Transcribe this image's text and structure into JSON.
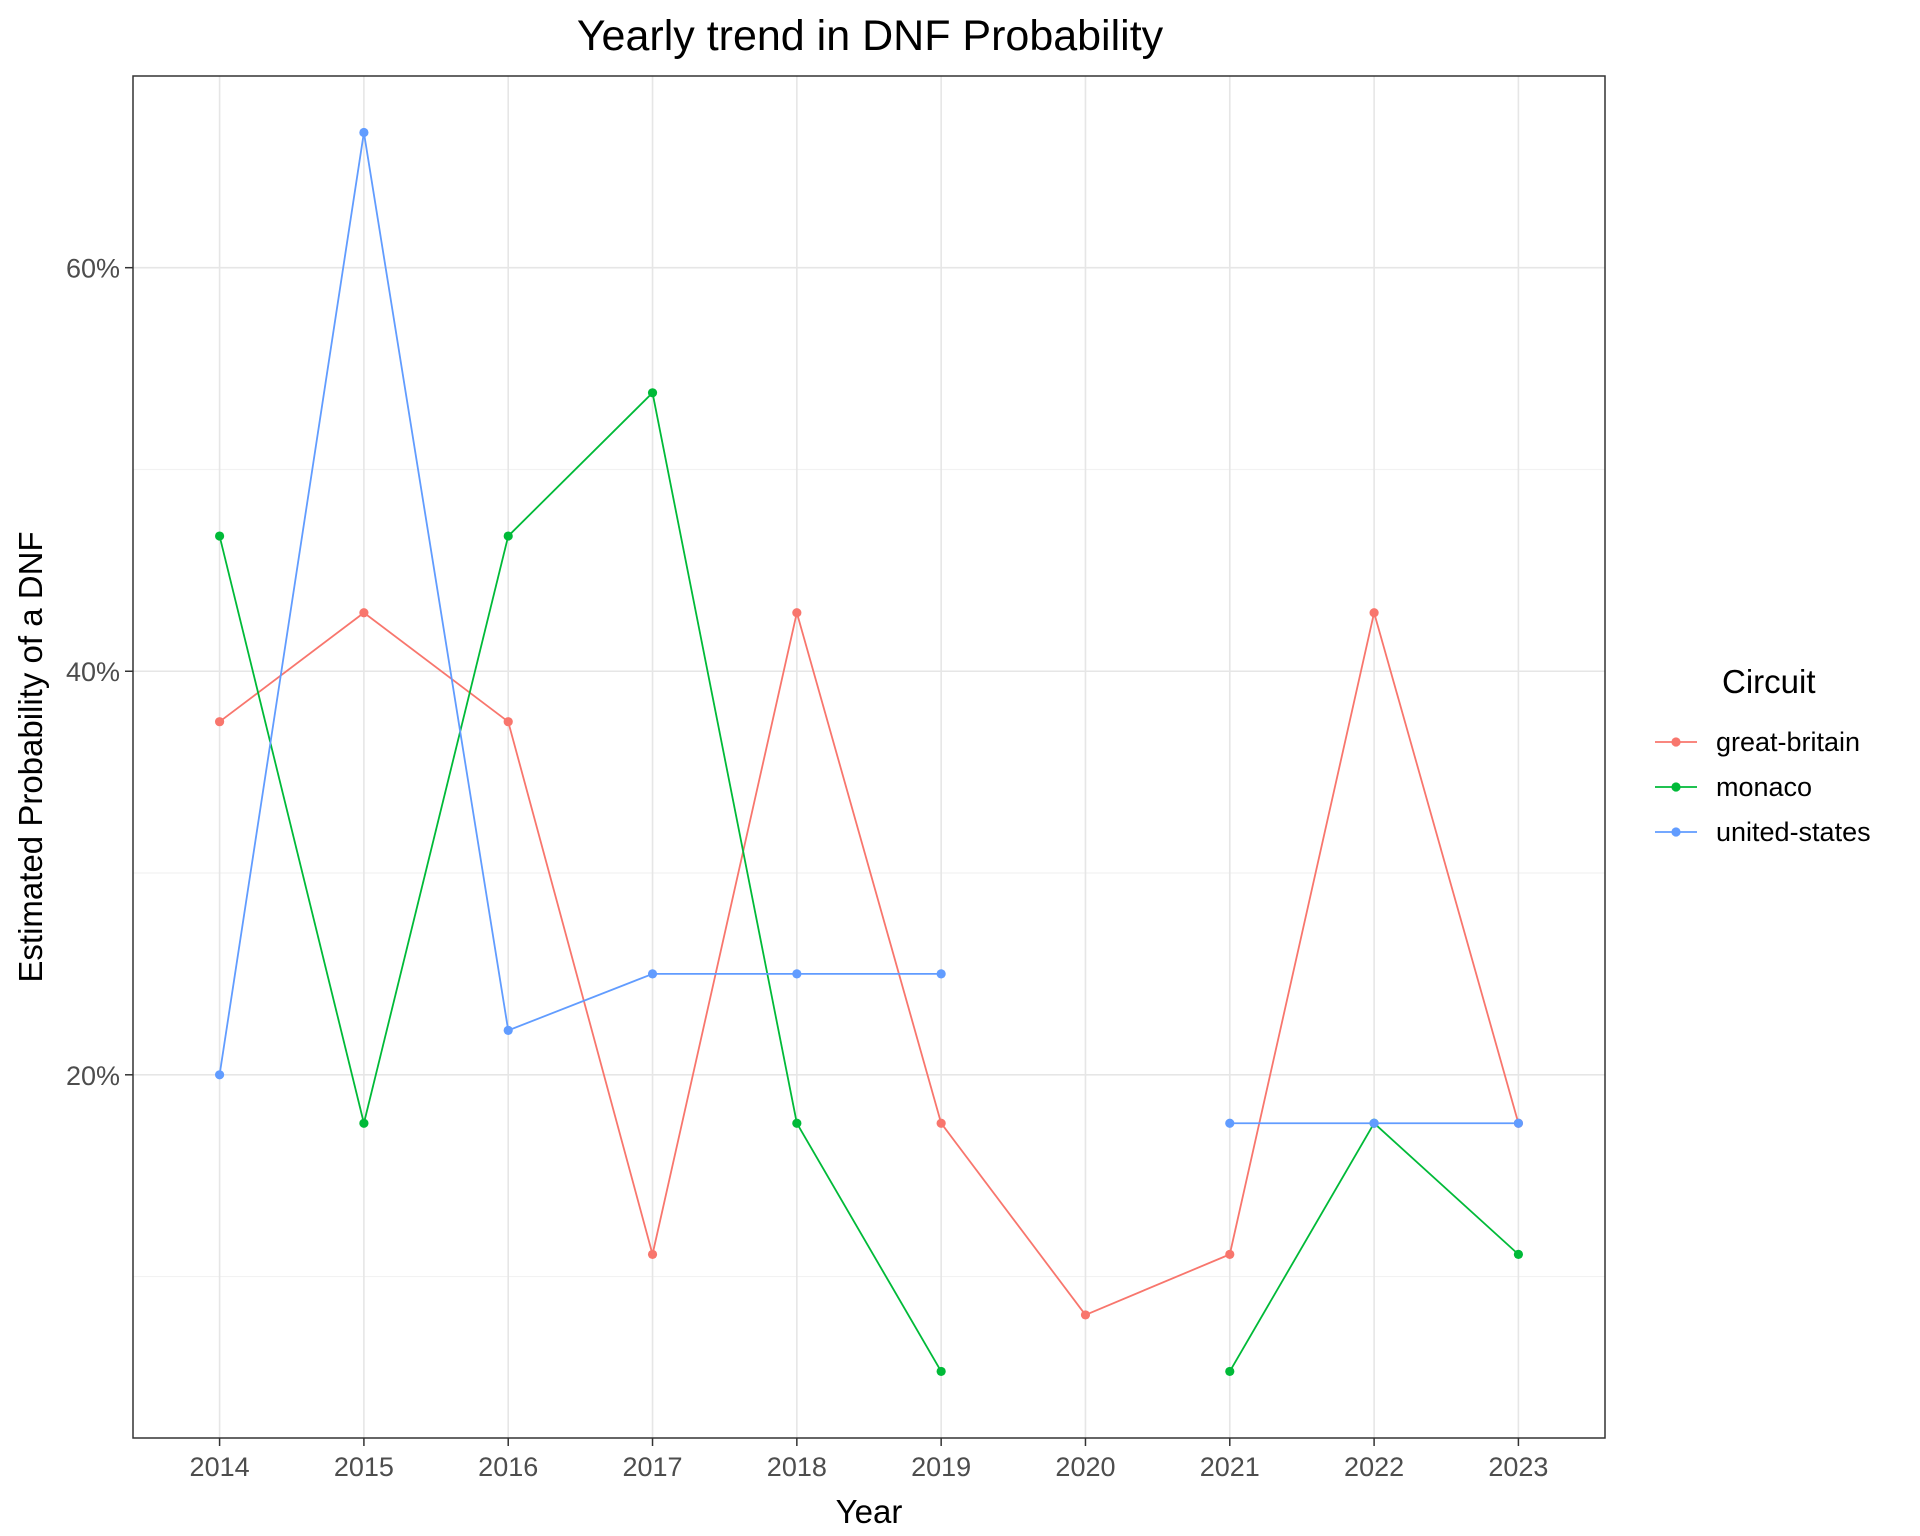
{
  "chart_data": {
    "type": "line",
    "title": "Yearly trend in DNF Probability",
    "xlabel": "Year",
    "ylabel": "Estimated Probability of a DNF",
    "x": [
      2014,
      2015,
      2016,
      2017,
      2018,
      2019,
      2020,
      2021,
      2022,
      2023
    ],
    "xlim": [
      2013.4,
      2023.6
    ],
    "ylim": [
      0.02,
      0.695
    ],
    "yticks": [
      0.2,
      0.4,
      0.6
    ],
    "ytick_labels": [
      "20%",
      "40%",
      "60%"
    ],
    "y_minor_ticks": [
      0.1,
      0.3,
      0.5
    ],
    "grid": true,
    "legend": {
      "title": "Circuit",
      "placement": "right"
    },
    "series": [
      {
        "name": "great-britain",
        "color": "#F8766D",
        "values": [
          0.375,
          0.429,
          0.375,
          0.111,
          0.429,
          0.176,
          null,
          0.111,
          0.429,
          0.176
        ]
      },
      {
        "name": "monaco",
        "color": "#00BA38",
        "values": [
          0.467,
          0.176,
          0.467,
          0.538,
          0.176,
          0.053,
          null,
          0.053,
          0.176,
          0.111
        ]
      },
      {
        "name": "united-states",
        "color": "#619CFF",
        "values": [
          0.2,
          0.667,
          0.222,
          0.25,
          0.25,
          0.25,
          null,
          0.176,
          0.176,
          0.176
        ]
      }
    ],
    "gaps": [
      {
        "series": "great-britain",
        "x": 2020,
        "value": 0.081
      }
    ]
  }
}
